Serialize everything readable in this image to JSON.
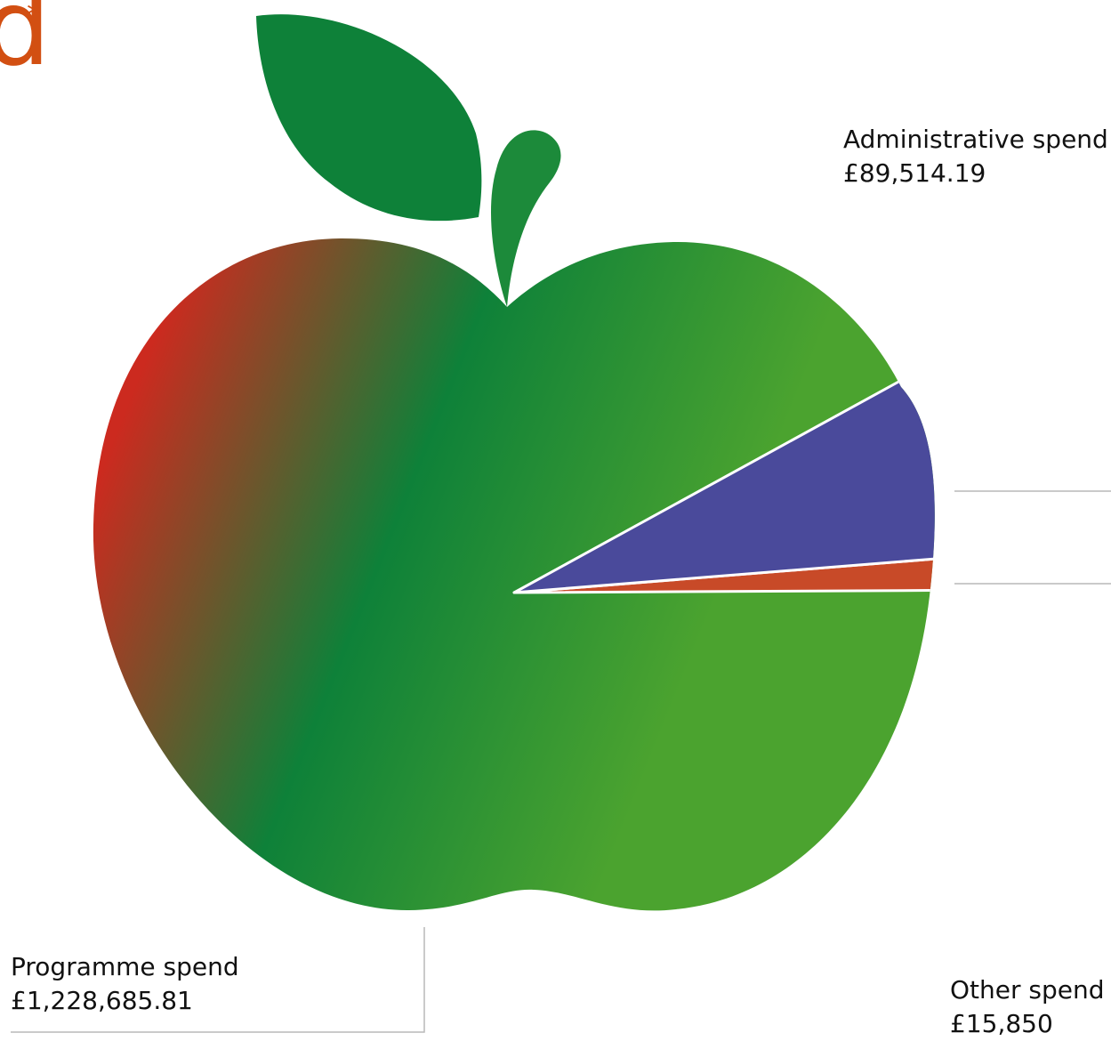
{
  "brand": {
    "fragment": "d",
    "mark": "*",
    "color": "#d24f12"
  },
  "colors": {
    "programme": "#4ba32f",
    "programme_dark": "#0e8139",
    "programme_red": "#cc2a1f",
    "administrative": "#4a4a9b",
    "other": "#c84a28",
    "leaf": "#0e8139",
    "callout_line": "#b9b9b9"
  },
  "chart_data": {
    "type": "pie",
    "title": "",
    "slices": [
      {
        "name": "Programme spend",
        "value_label": "£1,228,685.81",
        "value": 1228685.81,
        "color": "#4ba32f"
      },
      {
        "name": "Administrative spend",
        "value_label": "£89,514.19",
        "value": 89514.19,
        "color": "#4a4a9b"
      },
      {
        "name": "Other spend",
        "value_label": "£15,850",
        "value": 15850,
        "color": "#c84a28"
      }
    ],
    "legend": "callouts"
  }
}
